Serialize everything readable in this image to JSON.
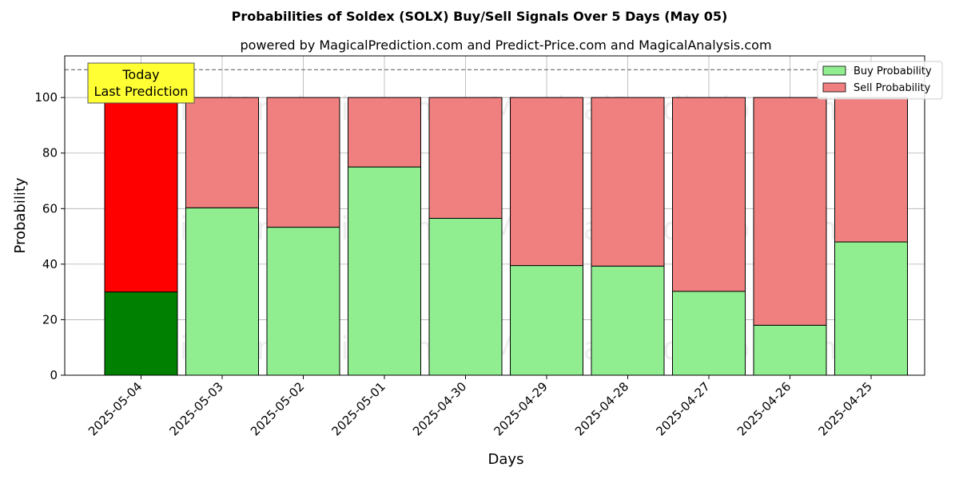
{
  "chart_data": {
    "type": "bar",
    "stacked": true,
    "title": "Probabilities of Soldex (SOLX) Buy/Sell Signals Over 5 Days (May 05)",
    "subtitle": "powered by MagicalPrediction.com and Predict-Price.com and MagicalAnalysis.com",
    "xlabel": "Days",
    "ylabel": "Probability",
    "ylim": [
      0,
      115
    ],
    "yticks": [
      0,
      20,
      40,
      60,
      80,
      100
    ],
    "grid": true,
    "legend_position": "top-right",
    "reference_line": 110,
    "categories": [
      "2025-05-04",
      "2025-05-03",
      "2025-05-02",
      "2025-05-01",
      "2025-04-30",
      "2025-04-29",
      "2025-04-28",
      "2025-04-27",
      "2025-04-26",
      "2025-04-25"
    ],
    "series": [
      {
        "name": "Buy Probability",
        "values": [
          30,
          60.3,
          53.3,
          75,
          56.5,
          39.5,
          39.3,
          30.2,
          18,
          48
        ],
        "color": "#90ee90",
        "highlight_color": "#008000"
      },
      {
        "name": "Sell Probability",
        "values": [
          70,
          39.7,
          46.7,
          25,
          43.5,
          60.5,
          60.7,
          69.8,
          82,
          52
        ],
        "color": "#f08080",
        "highlight_color": "#ff0000"
      }
    ],
    "annotation": {
      "lines": [
        "Today",
        "Last Prediction"
      ],
      "background": "#ffff33"
    },
    "watermarks": [
      "MagicalAnalysis.com",
      "MagicalPrediction.com"
    ]
  }
}
